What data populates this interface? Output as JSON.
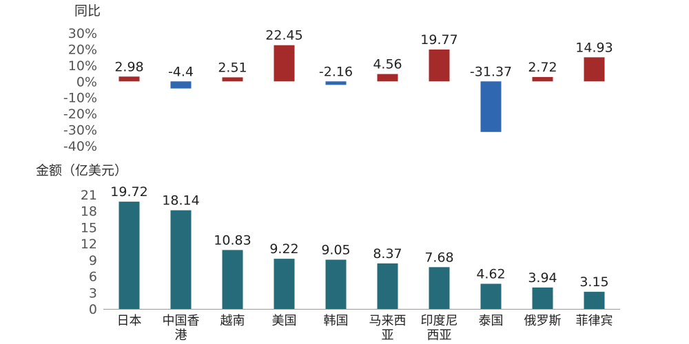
{
  "chart_data": [
    {
      "type": "bar",
      "title": "同比",
      "categories": [
        "日本",
        "中国香港",
        "越南",
        "美国",
        "韩国",
        "马来西亚",
        "印度尼西亚",
        "泰国",
        "俄罗斯",
        "菲律宾"
      ],
      "values": [
        2.98,
        -4.4,
        2.51,
        22.45,
        -2.16,
        4.56,
        19.77,
        -31.37,
        2.72,
        14.93
      ],
      "value_labels": [
        "2.98",
        "-4.4",
        "2.51",
        "22.45",
        "-2.16",
        "4.56",
        "19.77",
        "-31.37",
        "2.72",
        "14.93"
      ],
      "yticks": [
        "30%",
        "20%",
        "10%",
        "0%",
        "-10%",
        "-20%",
        "-30%",
        "-40%"
      ],
      "ylim": [
        -40,
        30
      ],
      "colors": {
        "positive": "#a52a2a",
        "negative": "#2f67b0"
      }
    },
    {
      "type": "bar",
      "title": "金额（亿美元）",
      "categories": [
        "日本",
        "中国香港",
        "越南",
        "美国",
        "韩国",
        "马来西亚",
        "印度尼西亚",
        "泰国",
        "俄罗斯",
        "菲律宾"
      ],
      "category_lines": [
        [
          "日本"
        ],
        [
          "中国香",
          "港"
        ],
        [
          "越南"
        ],
        [
          "美国"
        ],
        [
          "韩国"
        ],
        [
          "马来西",
          "亚"
        ],
        [
          "印度尼",
          "西亚"
        ],
        [
          "泰国"
        ],
        [
          "俄罗斯"
        ],
        [
          "菲律宾"
        ]
      ],
      "values": [
        19.72,
        18.14,
        10.83,
        9.22,
        9.05,
        8.37,
        7.68,
        4.62,
        3.94,
        3.15
      ],
      "value_labels": [
        "19.72",
        "18.14",
        "10.83",
        "9.22",
        "9.05",
        "8.37",
        "7.68",
        "4.62",
        "3.94",
        "3.15"
      ],
      "yticks": [
        "21",
        "18",
        "15",
        "12",
        "9",
        "6",
        "3",
        "0"
      ],
      "ylim": [
        0,
        21
      ],
      "colors": {
        "bar": "#256b7a"
      }
    }
  ]
}
